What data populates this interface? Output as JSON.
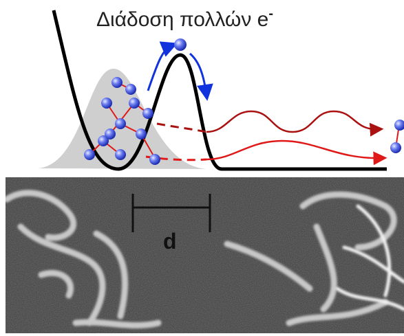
{
  "title": "Διάδοση πολλών e",
  "title_superscript": "-",
  "scale_label": "d"
}
